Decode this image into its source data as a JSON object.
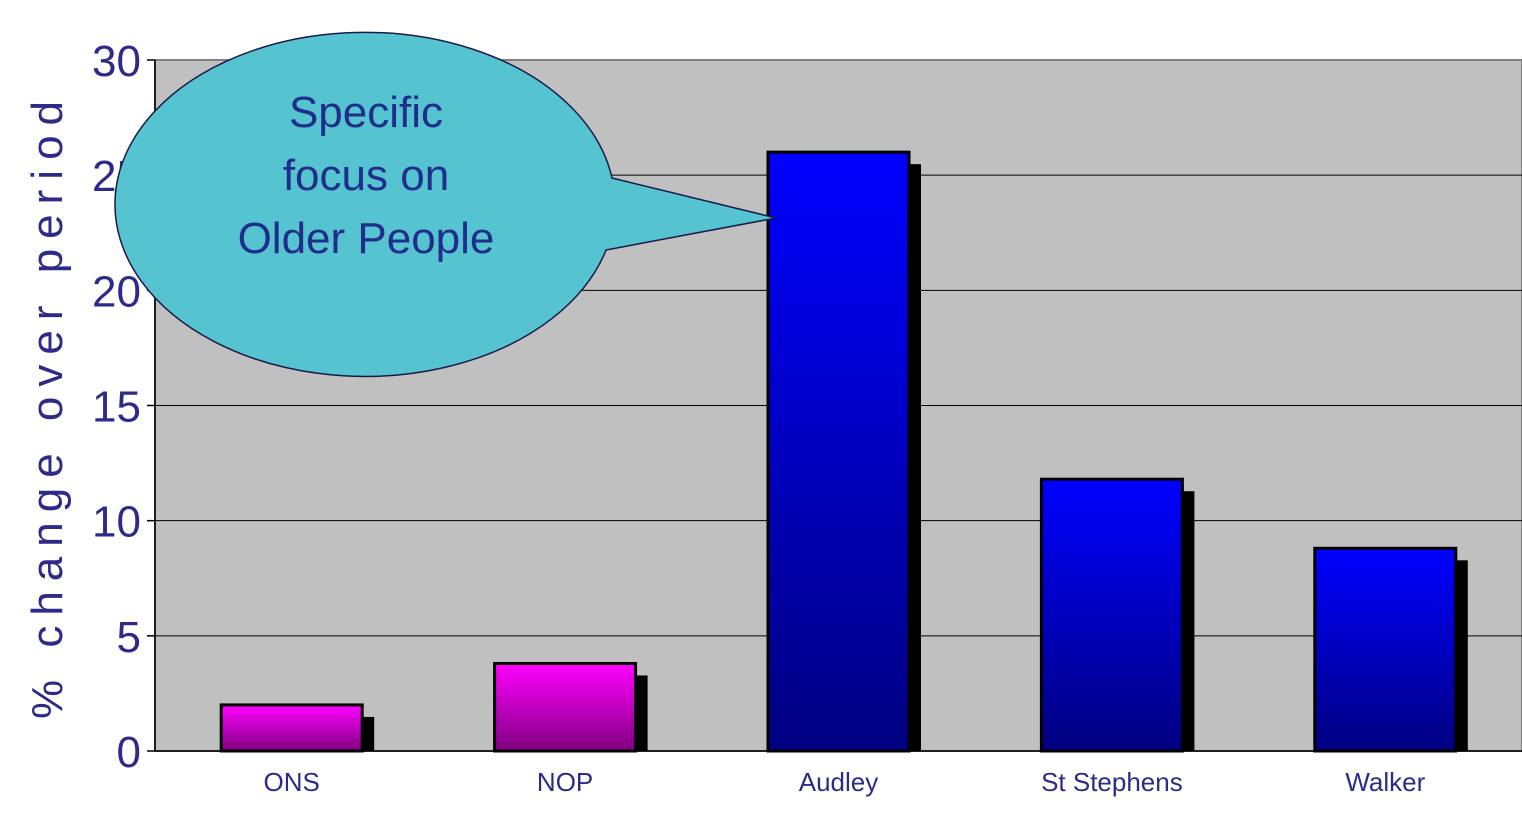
{
  "chart_data": {
    "type": "bar",
    "categories": [
      "ONS",
      "NOP",
      "Audley",
      "St Stephens",
      "Walker"
    ],
    "values": [
      2,
      3.8,
      26,
      11.8,
      8.8
    ],
    "xlabel": "",
    "ylabel": "% change over period",
    "ylim": [
      0,
      30
    ],
    "yticks": [
      "0",
      "5",
      "10",
      "15",
      "20",
      "25",
      "30"
    ],
    "grid": true,
    "legend": "none",
    "colors": {
      "plot_background": "#c0c0c0",
      "magenta_bar_top": "#ff00ff",
      "magenta_bar_bottom": "#800080",
      "blue_bar_top": "#0000ff",
      "blue_bar_bottom": "#000080",
      "bar_shadow": "#000000",
      "text": "#2e2a8a",
      "callout_fill": "#55c4d0"
    },
    "bar_color_groups": [
      "magenta",
      "magenta",
      "blue",
      "blue",
      "blue"
    ],
    "annotation": {
      "lines": [
        "Specific",
        "focus on",
        "Older People"
      ],
      "points_to": "Audley"
    }
  }
}
